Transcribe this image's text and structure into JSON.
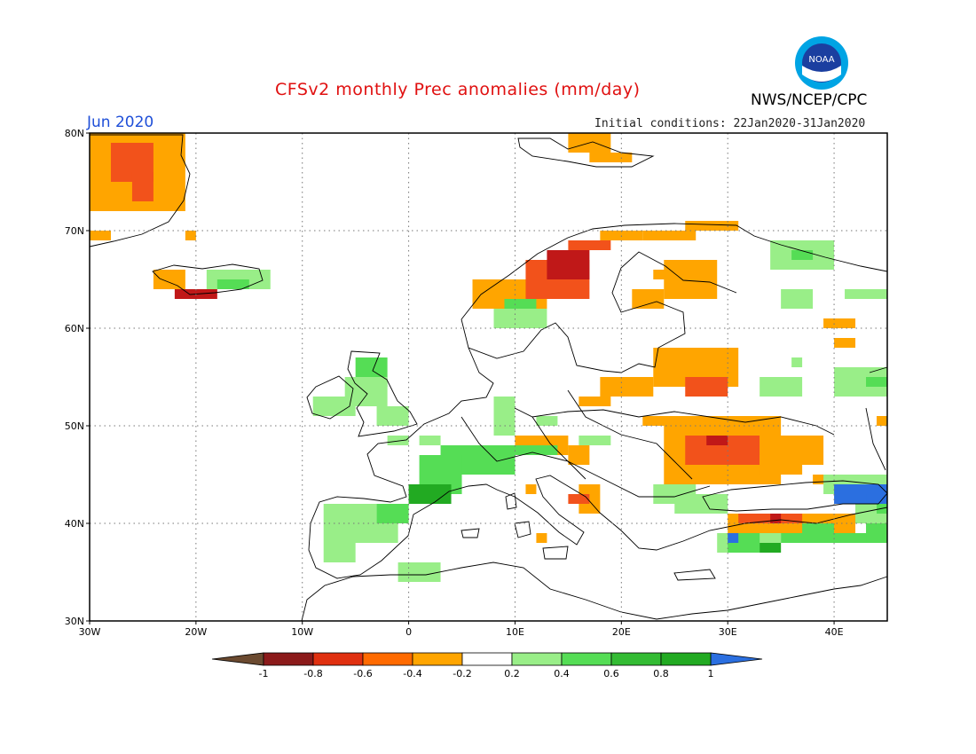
{
  "title": "CFSv2 monthly Prec anomalies (mm/day)",
  "agency": "NWS/NCEP/CPC",
  "logo_text": "NOAA",
  "month": "Jun 2020",
  "initial_conditions": "Initial conditions: 22Jan2020-31Jan2020",
  "lat_labels": [
    "80N",
    "70N",
    "60N",
    "50N",
    "40N",
    "30N"
  ],
  "lon_labels": [
    "30W",
    "20W",
    "10W",
    "0",
    "10E",
    "20E",
    "30E",
    "40E"
  ],
  "legend": {
    "ticks": [
      "-1",
      "-0.8",
      "-0.6",
      "-0.4",
      "-0.2",
      "0.2",
      "0.4",
      "0.6",
      "0.8",
      "1"
    ],
    "colors": [
      "#8b1a1a",
      "#e03010",
      "#ff6a00",
      "#ffa500",
      "#ffffff",
      "#99ee88",
      "#55dd55",
      "#33bb33",
      "#22aa22"
    ],
    "below_color": "#6b4a30",
    "above_color": "#2b6fe0"
  },
  "colors": {
    "orange": "#ffa500",
    "red_orange": "#f2521b",
    "dark_red": "#c01818",
    "light_green": "#99ee88",
    "green": "#55dd55",
    "dark_green": "#22aa22",
    "blue": "#2b6fe0"
  }
}
